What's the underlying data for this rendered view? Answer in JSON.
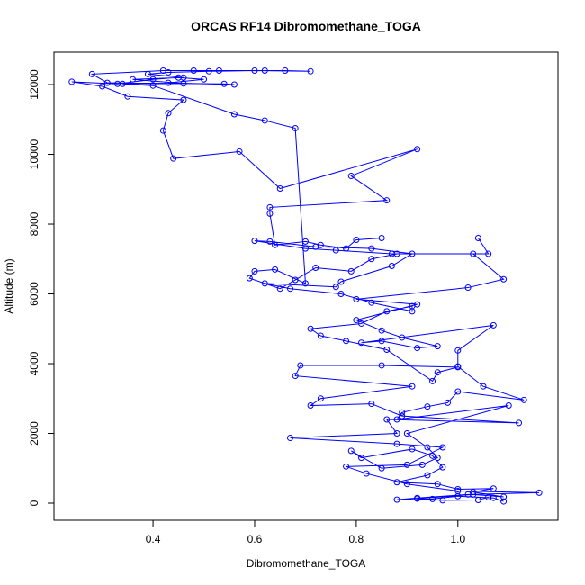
{
  "chart_data": {
    "type": "line",
    "title": "ORCAS RF14 Dibromomethane_TOGA",
    "x_label": "Dibromomethane_TOGA",
    "y_label": "Altitude (m)",
    "xlim": [
      0.205,
      1.197
    ],
    "ylim": [
      -490,
      12930
    ],
    "xticks": [
      0.4,
      0.6,
      0.8,
      {
        "value": 1.0,
        "label": "1.0"
      }
    ],
    "yticks": [
      0,
      2000,
      4000,
      6000,
      8000,
      10000,
      12000
    ],
    "series": [
      {
        "color": "#0000ff",
        "x": [
          1.09,
          1.07,
          1.0,
          0.95,
          0.88,
          0.92,
          1.02,
          1.16,
          1.0,
          0.9,
          0.82,
          0.78,
          0.9,
          0.97,
          0.88,
          0.67,
          0.88,
          0.86,
          1.12,
          0.89,
          0.83,
          0.71,
          0.73,
          0.91,
          0.68,
          0.69,
          0.85,
          1.0,
          0.96,
          0.95,
          0.86,
          0.78,
          0.73,
          0.71,
          0.81,
          0.86,
          0.91,
          0.91,
          0.83,
          0.77,
          0.67,
          0.62,
          0.76,
          0.77,
          0.87,
          0.91,
          0.83,
          0.72,
          0.63,
          0.6,
          0.7,
          0.76,
          0.87,
          1.06,
          1.04,
          0.85,
          0.8,
          0.78,
          0.73,
          0.7,
          0.64,
          0.63,
          0.63,
          0.86,
          0.79,
          0.92,
          0.65,
          0.57,
          0.44,
          0.42,
          0.43,
          0.46,
          0.35,
          0.3,
          0.24,
          0.33,
          0.4,
          0.45,
          0.5,
          0.43,
          0.56,
          0.54,
          0.31,
          0.28,
          0.42,
          0.48,
          0.53,
          0.62,
          0.66,
          0.71,
          0.6,
          0.51,
          0.43,
          0.39,
          0.46,
          0.36,
          0.46,
          0.34,
          0.4,
          0.56,
          0.62,
          0.68,
          0.7,
          0.64,
          0.6,
          0.59,
          0.65,
          0.68,
          0.72,
          0.79,
          0.83,
          0.88,
          1.03,
          1.09,
          1.02,
          0.8,
          0.92,
          0.8,
          0.85,
          0.89,
          0.96,
          0.92,
          0.85,
          0.81,
          1.07,
          1.0,
          1.0,
          1.05,
          1.13,
          1.0,
          0.98,
          0.94,
          0.89,
          0.88,
          1.1,
          0.9,
          0.94,
          0.96,
          0.93,
          0.85,
          0.79,
          0.81,
          0.91,
          0.95,
          0.97,
          0.94,
          0.88,
          0.96,
          1.0,
          1.07,
          1.03,
          1.09,
          1.03,
          0.92,
          0.97,
          1.04,
          1.06
        ],
        "values": [
          50,
          150,
          200,
          120,
          100,
          150,
          250,
          300,
          350,
          550,
          850,
          1050,
          1100,
          1600,
          1700,
          1870,
          2000,
          2400,
          2300,
          2500,
          2850,
          2800,
          3000,
          3350,
          3650,
          3950,
          3950,
          3900,
          3750,
          3500,
          4400,
          4650,
          4800,
          5000,
          5150,
          5500,
          5650,
          5500,
          5750,
          6000,
          6150,
          6300,
          6200,
          6350,
          6800,
          7150,
          7300,
          7350,
          7500,
          7520,
          7300,
          7250,
          7150,
          7150,
          7600,
          7600,
          7550,
          7300,
          7400,
          7500,
          7400,
          8300,
          8480,
          8680,
          9380,
          10150,
          9020,
          10080,
          9880,
          10680,
          11180,
          11560,
          11660,
          11950,
          12080,
          12020,
          12150,
          12200,
          12150,
          12050,
          12000,
          12020,
          12050,
          12300,
          12400,
          12400,
          12400,
          12400,
          12400,
          12380,
          12400,
          12380,
          12350,
          12300,
          12200,
          12150,
          12030,
          12020,
          11970,
          11150,
          10970,
          10750,
          6300,
          6700,
          6650,
          6450,
          6150,
          6400,
          6750,
          6650,
          7000,
          7150,
          7150,
          6420,
          6180,
          5850,
          5700,
          5250,
          4950,
          4750,
          4500,
          4450,
          4650,
          4600,
          5100,
          4380,
          3920,
          3350,
          2960,
          3200,
          2880,
          2770,
          2600,
          2400,
          2800,
          2000,
          1600,
          1300,
          1100,
          1000,
          1500,
          1300,
          1550,
          1360,
          1030,
          800,
          600,
          550,
          400,
          420,
          320,
          180,
          250,
          130,
          80,
          90,
          170
        ]
      }
    ]
  }
}
